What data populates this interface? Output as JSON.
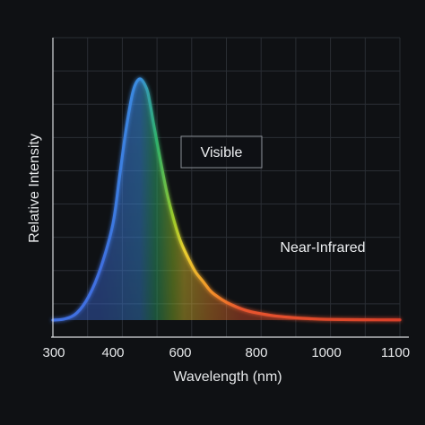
{
  "chart_data": {
    "type": "line",
    "title": "",
    "xlabel": "Wavelength (nm)",
    "ylabel": "Relative Intensity",
    "xlim": [
      300,
      1100
    ],
    "ylim": [
      0,
      1
    ],
    "x_ticks": [
      300,
      400,
      600,
      800,
      1000,
      1100
    ],
    "x_tick_labels": [
      "300",
      "400",
      "600",
      "800",
      "1000",
      "1100"
    ],
    "grid": true,
    "series": [
      {
        "x": [
          300,
          320,
          340,
          360,
          380,
          400,
          420,
          440,
          460,
          480,
          500,
          510,
          520,
          540,
          560,
          580,
          600,
          620,
          640,
          660,
          680,
          700,
          720,
          740,
          760,
          780,
          800,
          850,
          900,
          950,
          1000,
          1050,
          1100
        ],
        "y": [
          0.0,
          0.005,
          0.03,
          0.1,
          0.22,
          0.4,
          0.6,
          0.8,
          0.95,
          1.0,
          0.96,
          0.9,
          0.82,
          0.67,
          0.53,
          0.42,
          0.33,
          0.26,
          0.2,
          0.16,
          0.12,
          0.095,
          0.075,
          0.06,
          0.047,
          0.037,
          0.03,
          0.018,
          0.011,
          0.006,
          0.003,
          0.0015,
          0.0008
        ]
      }
    ],
    "annotations": [
      {
        "text": "Visible",
        "x": 530,
        "y": 0.6,
        "boxed": true
      },
      {
        "text": "Near-Infrared",
        "x": 880,
        "y": 0.28,
        "boxed": false
      }
    ],
    "colors": {
      "background": "#0f1114",
      "axis": "#d9dcdf",
      "grid": "#2a2e34",
      "gradient_stops": [
        {
          "wavelength": 380,
          "color": "#3f6fe0"
        },
        {
          "wavelength": 480,
          "color": "#3a8ee0"
        },
        {
          "wavelength": 530,
          "color": "#2fb06a"
        },
        {
          "wavelength": 580,
          "color": "#9cc92a"
        },
        {
          "wavelength": 610,
          "color": "#e8cf30"
        },
        {
          "wavelength": 680,
          "color": "#f2902a"
        },
        {
          "wavelength": 760,
          "color": "#e8552e"
        },
        {
          "wavelength": 1100,
          "color": "#d8402a"
        }
      ]
    }
  }
}
